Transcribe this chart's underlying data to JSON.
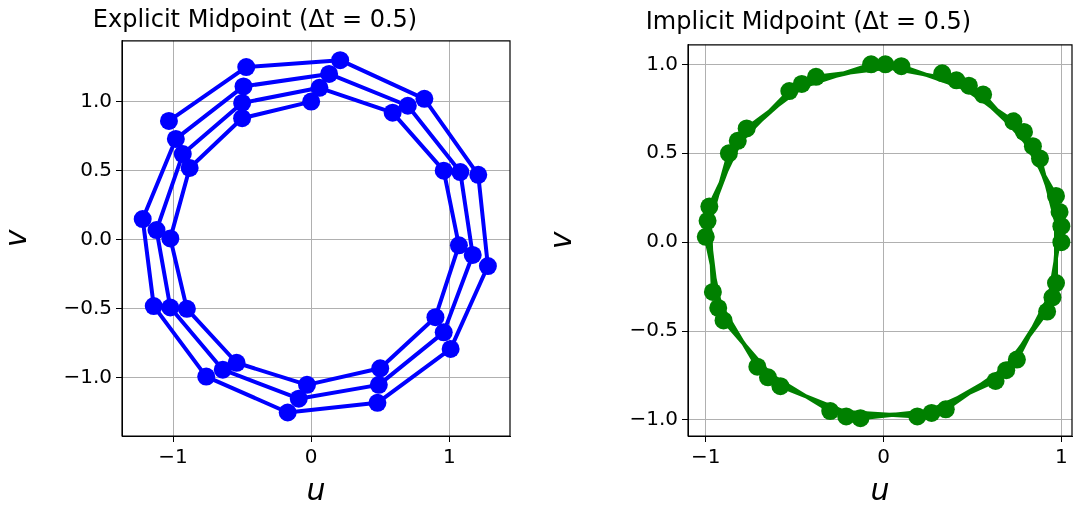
{
  "chart_data": [
    {
      "type": "line",
      "title": "Explicit Midpoint (Δt = 0.5)",
      "xlabel": "u",
      "ylabel": "v",
      "xlim": [
        -1.37,
        1.44
      ],
      "ylim": [
        -1.42,
        1.44
      ],
      "xticks": [
        {
          "value": -1,
          "label": "−1"
        },
        {
          "value": 0,
          "label": "0"
        },
        {
          "value": 1,
          "label": "1"
        }
      ],
      "yticks": [
        {
          "value": -1,
          "label": "−1.0"
        },
        {
          "value": -0.5,
          "label": "−0.5"
        },
        {
          "value": 0,
          "label": "0.0"
        },
        {
          "value": 0.5,
          "label": "0.5"
        },
        {
          "value": 1,
          "label": "1.0"
        }
      ],
      "grid": true,
      "marker": "circle",
      "line_style": "solid",
      "legend": false,
      "series": [
        {
          "color": "#0000ff",
          "x": [
            0,
            -0.5,
            -0.88,
            -1.02,
            -0.9,
            -0.54,
            -0.03,
            0.5,
            0.9,
            1.07,
            0.96,
            0.59,
            0.06,
            -0.5,
            -0.93,
            -1.12,
            -1.02,
            -0.64,
            -0.09,
            0.49,
            0.96,
            1.17,
            1.08,
            0.7,
            0.13,
            -0.49,
            -0.98,
            -1.22,
            -1.14,
            -0.76,
            -0.17,
            0.48,
            1.01,
            1.28,
            1.21,
            0.82,
            0.21,
            -0.47,
            -1.03
          ],
          "values": [
            1,
            0.88,
            0.52,
            0.01,
            -0.5,
            -0.89,
            -1.05,
            -0.93,
            -0.56,
            -0.04,
            0.5,
            0.92,
            1.1,
            0.99,
            0.62,
            0.07,
            -0.49,
            -0.94,
            -1.15,
            -1.05,
            -0.67,
            -0.11,
            0.49,
            0.97,
            1.2,
            1.11,
            0.73,
            0.15,
            -0.48,
            -0.99,
            -1.25,
            -1.18,
            -0.79,
            -0.19,
            0.47,
            1.02,
            1.3,
            1.25,
            0.86
          ]
        }
      ]
    },
    {
      "type": "line",
      "title": "Implicit Midpoint (Δt = 0.5)",
      "xlabel": "u",
      "ylabel": "v",
      "xlim": [
        -1.1,
        1.06
      ],
      "ylim": [
        -1.09,
        1.11
      ],
      "xticks": [
        {
          "value": -1,
          "label": "−1"
        },
        {
          "value": 0,
          "label": "0"
        },
        {
          "value": 1,
          "label": "1"
        }
      ],
      "yticks": [
        {
          "value": -1,
          "label": "−1.0"
        },
        {
          "value": -0.5,
          "label": "−0.5"
        },
        {
          "value": 0,
          "label": "0.0"
        },
        {
          "value": 0.5,
          "label": "0.5"
        },
        {
          "value": 1,
          "label": "1.0"
        }
      ],
      "grid": true,
      "marker": "circle",
      "line_style": "solid",
      "legend": false,
      "series": [
        {
          "color": "#008000",
          "x": [
            1,
            0.88,
            0.56,
            0.1,
            -0.38,
            -0.77,
            -0.98,
            -0.96,
            -0.71,
            -0.3,
            0.19,
            0.63,
            0.92,
            1,
            0.84,
            0.48,
            0.01,
            -0.46,
            -0.82,
            -0.99,
            -0.93,
            -0.65,
            -0.21,
            0.27,
            0.69,
            0.95,
            0.99,
            0.79,
            0.41,
            -0.07,
            -0.53,
            -0.87,
            -1,
            -0.9,
            -0.58,
            -0.13,
            0.35,
            0.75,
            0.97,
            0.97,
            0.73,
            0.33
          ],
          "values": [
            0,
            0.47,
            0.83,
            0.99,
            0.93,
            0.64,
            0.2,
            -0.28,
            -0.7,
            -0.95,
            -0.98,
            -0.78,
            -0.39,
            0.09,
            0.54,
            0.88,
            1,
            0.89,
            0.57,
            0.12,
            -0.37,
            -0.76,
            -0.98,
            -0.96,
            -0.72,
            -0.31,
            0.17,
            0.62,
            0.91,
            1,
            0.85,
            0.5,
            0.03,
            -0.44,
            -0.81,
            -0.99,
            -0.94,
            -0.66,
            -0.23,
            0.26,
            0.68,
            0.95
          ]
        }
      ]
    }
  ]
}
